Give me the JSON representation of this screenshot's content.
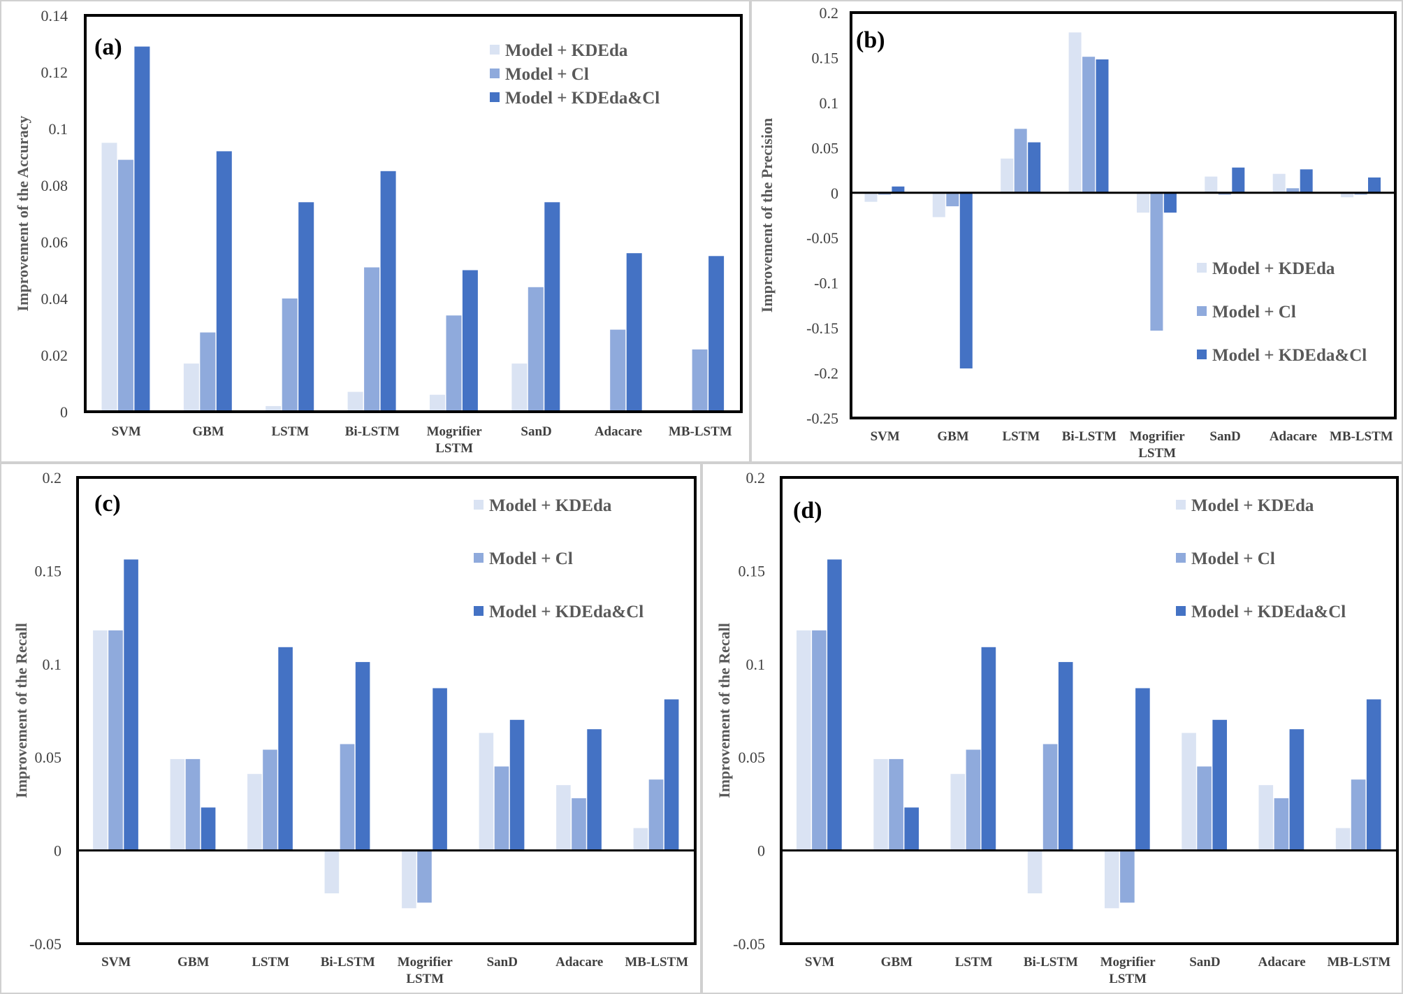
{
  "colors": {
    "series": [
      "#dae3f3",
      "#8faadc",
      "#4472c4"
    ],
    "frame": "#000000",
    "grid_border": "#d0d0d0"
  },
  "chart_data": [
    {
      "type": "bar",
      "panel_label": "(a)",
      "ylabel": "Improvement of the Accuracy",
      "categories": [
        "SVM",
        "GBM",
        "LSTM",
        "Bi-LSTM",
        "Mogrifier\nLSTM",
        "SanD",
        "Adacare",
        "MB-LSTM"
      ],
      "ylim": [
        0,
        0.14
      ],
      "yticks": [
        "0",
        "0.02",
        "0.04",
        "0.06",
        "0.08",
        "0.1",
        "0.12",
        "0.14"
      ],
      "ytick_values": [
        0,
        0.02,
        0.04,
        0.06,
        0.08,
        0.1,
        0.12,
        0.14
      ],
      "legend_position": "top-right",
      "series": [
        {
          "name": "Model + KDEda",
          "values": [
            0.095,
            0.017,
            0.002,
            0.007,
            0.006,
            0.017,
            0.0,
            0.0
          ]
        },
        {
          "name": "Model + Cl",
          "values": [
            0.089,
            0.028,
            0.04,
            0.051,
            0.034,
            0.044,
            0.029,
            0.022
          ]
        },
        {
          "name": "Model + KDEda&Cl",
          "values": [
            0.129,
            0.092,
            0.074,
            0.085,
            0.05,
            0.074,
            0.056,
            0.055
          ]
        }
      ]
    },
    {
      "type": "bar",
      "panel_label": "(b)",
      "ylabel": "Improvement of the Precision",
      "categories": [
        "SVM",
        "GBM",
        "LSTM",
        "Bi-LSTM",
        "Mogrifier\nLSTM",
        "SanD",
        "Adacare",
        "MB-LSTM"
      ],
      "ylim": [
        -0.25,
        0.2
      ],
      "yticks": [
        "-0.25",
        "-0.2",
        "-0.15",
        "-0.1",
        "-0.05",
        "0",
        "0.05",
        "0.1",
        "0.15",
        "0.2"
      ],
      "ytick_values": [
        -0.25,
        -0.2,
        -0.15,
        -0.1,
        -0.05,
        0,
        0.05,
        0.1,
        0.15,
        0.2
      ],
      "legend_position": "bottom-right",
      "series": [
        {
          "name": "Model + KDEda",
          "values": [
            -0.01,
            -0.027,
            0.038,
            0.178,
            -0.022,
            0.018,
            0.021,
            -0.005
          ]
        },
        {
          "name": "Model + Cl",
          "values": [
            -0.002,
            -0.015,
            0.071,
            0.151,
            -0.153,
            -0.002,
            0.005,
            -0.002
          ]
        },
        {
          "name": "Model + KDEda&Cl",
          "values": [
            0.007,
            -0.195,
            0.056,
            0.148,
            -0.022,
            0.028,
            0.026,
            0.017
          ]
        }
      ]
    },
    {
      "type": "bar",
      "panel_label": "(c)",
      "ylabel": "Improvement of the Recall",
      "categories": [
        "SVM",
        "GBM",
        "LSTM",
        "Bi-LSTM",
        "Mogrifier\nLSTM",
        "SanD",
        "Adacare",
        "MB-LSTM"
      ],
      "ylim": [
        -0.05,
        0.2
      ],
      "yticks": [
        "-0.05",
        "0",
        "0.05",
        "0.1",
        "0.15",
        "0.2"
      ],
      "ytick_values": [
        -0.05,
        0,
        0.05,
        0.1,
        0.15,
        0.2
      ],
      "legend_position": "top-right",
      "series": [
        {
          "name": "Model + KDEda",
          "values": [
            0.118,
            0.049,
            0.041,
            -0.023,
            -0.031,
            0.063,
            0.035,
            0.012
          ]
        },
        {
          "name": "Model + Cl",
          "values": [
            0.118,
            0.049,
            0.054,
            0.057,
            -0.028,
            0.045,
            0.028,
            0.038
          ]
        },
        {
          "name": "Model + KDEda&Cl",
          "values": [
            0.156,
            0.023,
            0.109,
            0.101,
            0.087,
            0.07,
            0.065,
            0.081
          ]
        }
      ]
    },
    {
      "type": "bar",
      "panel_label": "(d)",
      "ylabel": "Improvement of the Recall",
      "categories": [
        "SVM",
        "GBM",
        "LSTM",
        "Bi-LSTM",
        "Mogrifier\nLSTM",
        "SanD",
        "Adacare",
        "MB-LSTM"
      ],
      "ylim": [
        -0.05,
        0.2
      ],
      "yticks": [
        "-0.05",
        "0",
        "0.05",
        "0.1",
        "0.15",
        "0.2"
      ],
      "ytick_values": [
        -0.05,
        0,
        0.05,
        0.1,
        0.15,
        0.2
      ],
      "legend_position": "top-right",
      "series": [
        {
          "name": "Model + KDEda",
          "values": [
            0.118,
            0.049,
            0.041,
            -0.023,
            -0.031,
            0.063,
            0.035,
            0.012
          ]
        },
        {
          "name": "Model + Cl",
          "values": [
            0.118,
            0.049,
            0.054,
            0.057,
            -0.028,
            0.045,
            0.028,
            0.038
          ]
        },
        {
          "name": "Model + KDEda&Cl",
          "values": [
            0.156,
            0.023,
            0.109,
            0.101,
            0.087,
            0.07,
            0.065,
            0.081
          ]
        }
      ]
    }
  ]
}
